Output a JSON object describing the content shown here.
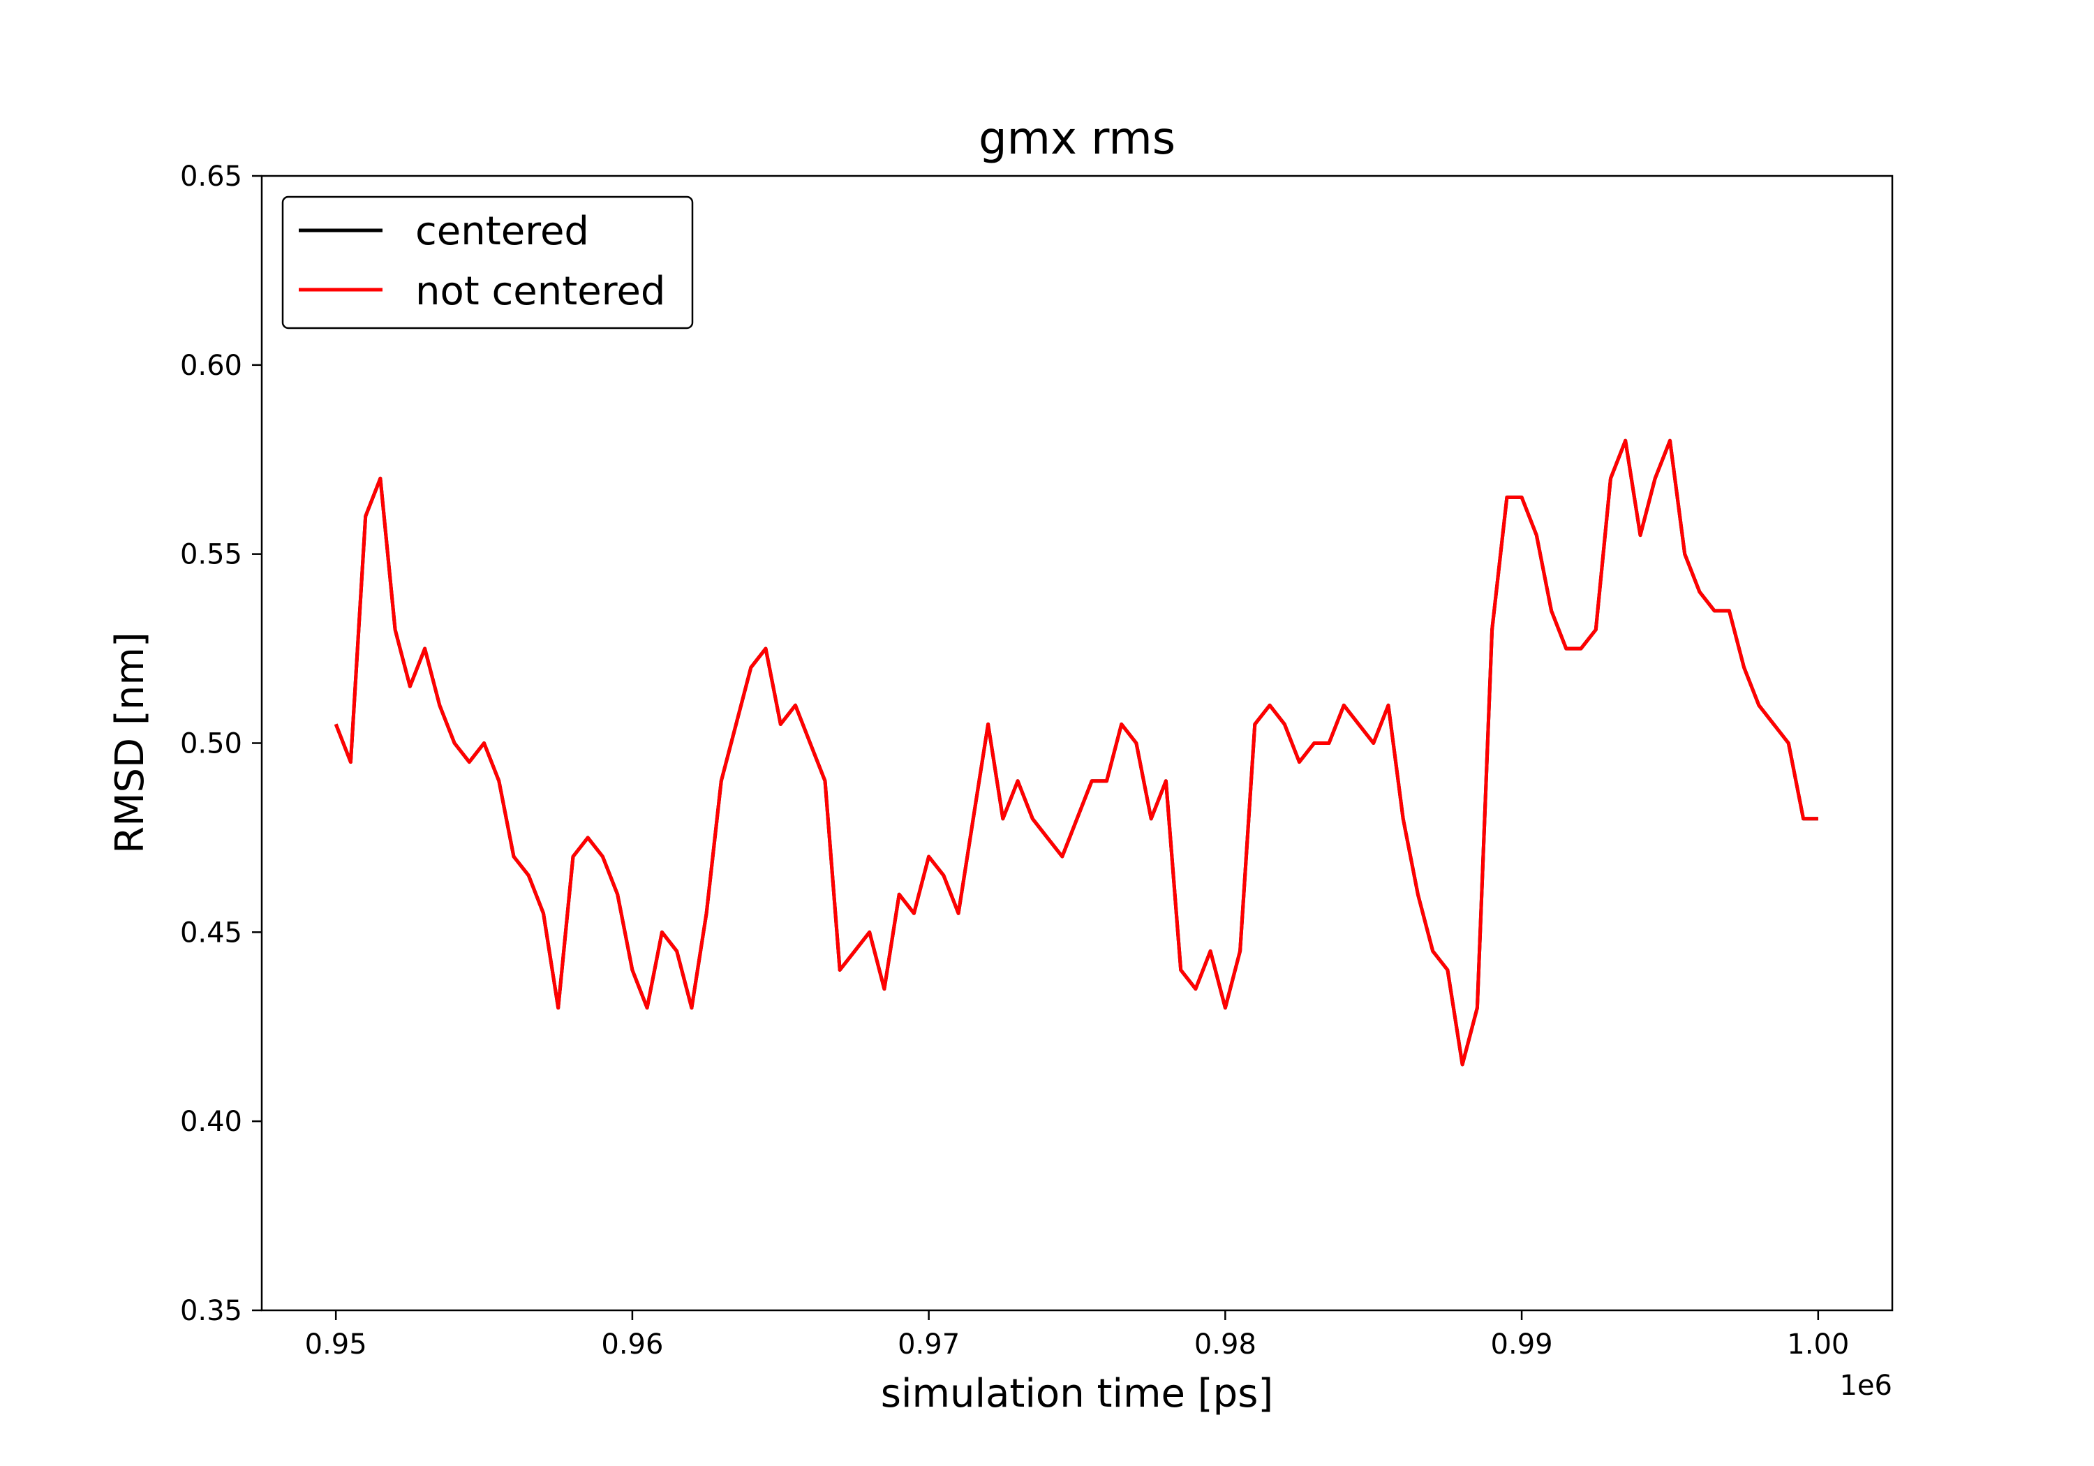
{
  "chart_data": {
    "type": "line",
    "title": "gmx rms",
    "xlabel": "simulation time [ps]",
    "ylabel": "RMSD [nm]",
    "x_offset_label": "1e6",
    "xlim": [
      0.9475,
      1.0025
    ],
    "ylim": [
      0.35,
      0.65
    ],
    "x_ticks": [
      0.95,
      0.96,
      0.97,
      0.98,
      0.99,
      1.0
    ],
    "x_tick_labels": [
      "0.95",
      "0.96",
      "0.97",
      "0.98",
      "0.99",
      "1.00"
    ],
    "y_ticks": [
      0.35,
      0.4,
      0.45,
      0.5,
      0.55,
      0.6,
      0.65
    ],
    "y_tick_labels": [
      "0.35",
      "0.40",
      "0.45",
      "0.50",
      "0.55",
      "0.60",
      "0.65"
    ],
    "grid": false,
    "legend_position": "top-left",
    "series": [
      {
        "name": "centered",
        "color": "#000000",
        "x": [
          0.95,
          0.9505,
          0.951,
          0.9515,
          0.952,
          0.9525,
          0.953,
          0.9535,
          0.954,
          0.9545,
          0.955,
          0.9555,
          0.956,
          0.9565,
          0.957,
          0.9575,
          0.958,
          0.9585,
          0.959,
          0.9595,
          0.96,
          0.9605,
          0.961,
          0.9615,
          0.962,
          0.9625,
          0.963,
          0.9635,
          0.964,
          0.9645,
          0.965,
          0.9655,
          0.966,
          0.9665,
          0.967,
          0.9675,
          0.968,
          0.9685,
          0.969,
          0.9695,
          0.97,
          0.9705,
          0.971,
          0.9715,
          0.972,
          0.9725,
          0.973,
          0.9735,
          0.974,
          0.9745,
          0.975,
          0.9755,
          0.976,
          0.9765,
          0.977,
          0.9775,
          0.978,
          0.9785,
          0.979,
          0.9795,
          0.98,
          0.9805,
          0.981,
          0.9815,
          0.982,
          0.9825,
          0.983,
          0.9835,
          0.984,
          0.9845,
          0.985,
          0.9855,
          0.986,
          0.9865,
          0.987,
          0.9875,
          0.988,
          0.9885,
          0.989,
          0.9895,
          0.99,
          0.9905,
          0.991,
          0.9915,
          0.992,
          0.9925,
          0.993,
          0.9935,
          0.994,
          0.9945,
          0.995,
          0.9955,
          0.996,
          0.9965,
          0.997,
          0.9975,
          0.998,
          0.9985,
          0.999,
          0.9995,
          1.0
        ],
        "y": [
          0.505,
          0.495,
          0.56,
          0.57,
          0.53,
          0.515,
          0.525,
          0.51,
          0.5,
          0.495,
          0.5,
          0.49,
          0.47,
          0.465,
          0.455,
          0.43,
          0.47,
          0.475,
          0.47,
          0.46,
          0.44,
          0.43,
          0.45,
          0.445,
          0.43,
          0.455,
          0.49,
          0.505,
          0.52,
          0.525,
          0.505,
          0.51,
          0.5,
          0.49,
          0.44,
          0.445,
          0.45,
          0.435,
          0.46,
          0.455,
          0.47,
          0.465,
          0.455,
          0.48,
          0.505,
          0.48,
          0.49,
          0.48,
          0.475,
          0.47,
          0.48,
          0.49,
          0.49,
          0.505,
          0.5,
          0.48,
          0.49,
          0.44,
          0.435,
          0.445,
          0.43,
          0.445,
          0.505,
          0.51,
          0.505,
          0.495,
          0.5,
          0.5,
          0.51,
          0.505,
          0.5,
          0.51,
          0.48,
          0.46,
          0.445,
          0.44,
          0.415,
          0.43,
          0.53,
          0.565,
          0.565,
          0.555,
          0.535,
          0.525,
          0.525,
          0.53,
          0.57,
          0.58,
          0.555,
          0.57,
          0.58,
          0.55,
          0.54,
          0.535,
          0.535,
          0.52,
          0.51,
          0.505,
          0.5,
          0.48,
          0.48
        ]
      },
      {
        "name": "not centered",
        "color": "#ff0000",
        "x": [
          0.95,
          0.9505,
          0.951,
          0.9515,
          0.952,
          0.9525,
          0.953,
          0.9535,
          0.954,
          0.9545,
          0.955,
          0.9555,
          0.956,
          0.9565,
          0.957,
          0.9575,
          0.958,
          0.9585,
          0.959,
          0.9595,
          0.96,
          0.9605,
          0.961,
          0.9615,
          0.962,
          0.9625,
          0.963,
          0.9635,
          0.964,
          0.9645,
          0.965,
          0.9655,
          0.966,
          0.9665,
          0.967,
          0.9675,
          0.968,
          0.9685,
          0.969,
          0.9695,
          0.97,
          0.9705,
          0.971,
          0.9715,
          0.972,
          0.9725,
          0.973,
          0.9735,
          0.974,
          0.9745,
          0.975,
          0.9755,
          0.976,
          0.9765,
          0.977,
          0.9775,
          0.978,
          0.9785,
          0.979,
          0.9795,
          0.98,
          0.9805,
          0.981,
          0.9815,
          0.982,
          0.9825,
          0.983,
          0.9835,
          0.984,
          0.9845,
          0.985,
          0.9855,
          0.986,
          0.9865,
          0.987,
          0.9875,
          0.988,
          0.9885,
          0.989,
          0.9895,
          0.99,
          0.9905,
          0.991,
          0.9915,
          0.992,
          0.9925,
          0.993,
          0.9935,
          0.994,
          0.9945,
          0.995,
          0.9955,
          0.996,
          0.9965,
          0.997,
          0.9975,
          0.998,
          0.9985,
          0.999,
          0.9995,
          1.0
        ],
        "y": [
          0.505,
          0.495,
          0.56,
          0.57,
          0.53,
          0.515,
          0.525,
          0.51,
          0.5,
          0.495,
          0.5,
          0.49,
          0.47,
          0.465,
          0.455,
          0.43,
          0.47,
          0.475,
          0.47,
          0.46,
          0.44,
          0.43,
          0.45,
          0.445,
          0.43,
          0.455,
          0.49,
          0.505,
          0.52,
          0.525,
          0.505,
          0.51,
          0.5,
          0.49,
          0.44,
          0.445,
          0.45,
          0.435,
          0.46,
          0.455,
          0.47,
          0.465,
          0.455,
          0.48,
          0.505,
          0.48,
          0.49,
          0.48,
          0.475,
          0.47,
          0.48,
          0.49,
          0.49,
          0.505,
          0.5,
          0.48,
          0.49,
          0.44,
          0.435,
          0.445,
          0.43,
          0.445,
          0.505,
          0.51,
          0.505,
          0.495,
          0.5,
          0.5,
          0.51,
          0.505,
          0.5,
          0.51,
          0.48,
          0.46,
          0.445,
          0.44,
          0.415,
          0.43,
          0.53,
          0.565,
          0.565,
          0.555,
          0.535,
          0.525,
          0.525,
          0.53,
          0.57,
          0.58,
          0.555,
          0.57,
          0.58,
          0.55,
          0.54,
          0.535,
          0.535,
          0.52,
          0.51,
          0.505,
          0.5,
          0.48,
          0.48
        ]
      }
    ]
  }
}
